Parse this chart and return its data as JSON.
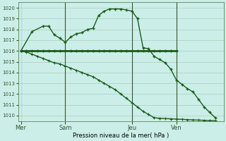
{
  "xlabel": "Pression niveau de la mer( hPa )",
  "ylim": [
    1009.5,
    1020.5
  ],
  "yticks": [
    1010,
    1011,
    1012,
    1013,
    1014,
    1015,
    1016,
    1017,
    1018,
    1019,
    1020
  ],
  "bg_color": "#cceee8",
  "grid_color": "#aaccbb",
  "line_color": "#1a5c1a",
  "vline_color": "#335533",
  "xtick_labels": [
    "Mer",
    "Sam",
    "Jeu",
    "Ven"
  ],
  "xtick_positions": [
    0,
    8,
    20,
    28
  ],
  "vline_positions": [
    8,
    20,
    28
  ],
  "xlim": [
    -0.5,
    36.5
  ],
  "line1_x": [
    0,
    1,
    2,
    3,
    4,
    5,
    6,
    7,
    8,
    9,
    10,
    11,
    12,
    13,
    14,
    15,
    16,
    17,
    18,
    19,
    20,
    21,
    22,
    23,
    24,
    25,
    26,
    27,
    28
  ],
  "line1_y": [
    1016.0,
    1016.0,
    1016.0,
    1016.0,
    1016.0,
    1016.0,
    1016.0,
    1016.0,
    1016.0,
    1016.0,
    1016.0,
    1016.0,
    1016.0,
    1016.0,
    1016.0,
    1016.0,
    1016.0,
    1016.0,
    1016.0,
    1016.0,
    1016.0,
    1016.0,
    1016.0,
    1016.0,
    1016.0,
    1016.0,
    1016.0,
    1016.0,
    1016.0
  ],
  "line2_x": [
    0,
    2,
    4,
    5,
    6,
    7,
    8,
    9,
    10,
    11,
    12,
    13,
    14,
    15,
    16,
    17,
    18,
    19,
    20,
    21,
    22,
    23,
    24,
    25,
    26,
    27,
    28,
    29,
    30,
    31,
    32,
    33,
    34,
    35
  ],
  "line2_y": [
    1016.0,
    1017.8,
    1018.3,
    1018.3,
    1017.5,
    1017.2,
    1016.8,
    1017.3,
    1017.6,
    1017.7,
    1018.0,
    1018.1,
    1019.3,
    1019.7,
    1019.9,
    1019.9,
    1019.9,
    1019.8,
    1019.7,
    1019.0,
    1016.3,
    1016.2,
    1015.5,
    1015.2,
    1014.9,
    1014.3,
    1013.3,
    1012.9,
    1012.5,
    1012.2,
    1011.5,
    1010.8,
    1010.3,
    1009.8
  ],
  "line3_x": [
    0,
    1,
    2,
    3,
    4,
    5,
    6,
    7,
    8,
    9,
    10,
    11,
    12,
    13,
    14,
    15,
    16,
    17,
    18,
    19,
    20,
    21,
    22,
    23,
    24,
    25,
    26,
    27,
    28,
    29,
    30,
    31,
    32,
    33,
    34,
    35
  ],
  "line3_y": [
    1016.0,
    1015.9,
    1015.7,
    1015.5,
    1015.3,
    1015.1,
    1014.9,
    1014.8,
    1014.6,
    1014.4,
    1014.2,
    1014.0,
    1013.8,
    1013.6,
    1013.3,
    1013.0,
    1012.7,
    1012.4,
    1012.0,
    1011.6,
    1011.2,
    1010.8,
    1010.4,
    1010.1,
    1009.8,
    1009.75,
    1009.72,
    1009.7,
    1009.68,
    1009.65,
    1009.62,
    1009.6,
    1009.58,
    1009.56,
    1009.54,
    1009.52
  ]
}
